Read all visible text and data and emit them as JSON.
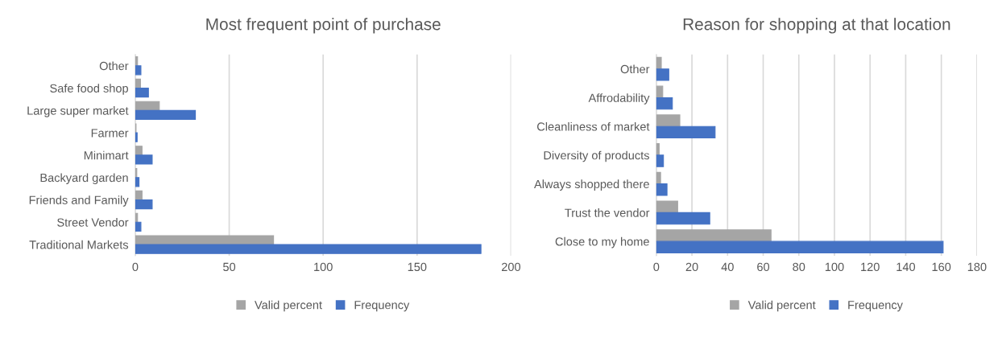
{
  "chart_data": [
    {
      "type": "bar",
      "orientation": "horizontal",
      "title": "Most frequent point of purchase",
      "categories": [
        "Other",
        "Safe food shop",
        "Large super market",
        "Farmer",
        "Minimart",
        "Backyard garden",
        "Friends and Family",
        "Street Vendor",
        "Traditional Markets"
      ],
      "series": [
        {
          "name": "Valid percent",
          "color": "#a5a5a5",
          "values": [
            1.2,
            2.8,
            12.8,
            0.4,
            3.6,
            0.8,
            3.6,
            1.2,
            73.6
          ]
        },
        {
          "name": "Frequency",
          "color": "#4472c4",
          "values": [
            3,
            7,
            32,
            1,
            9,
            2,
            9,
            3,
            184
          ]
        }
      ],
      "xlim": [
        0,
        200
      ],
      "xticks": [
        0,
        50,
        100,
        150,
        200
      ],
      "grid": "x",
      "legend": "bottom"
    },
    {
      "type": "bar",
      "orientation": "horizontal",
      "title": "Reason for shopping at that location",
      "categories": [
        "Other",
        "Affrodability",
        "Cleanliness of market",
        "Diversity of products",
        "Always shopped there",
        "Trust the vendor",
        "Close to my home"
      ],
      "series": [
        {
          "name": "Valid percent",
          "color": "#a5a5a5",
          "values": [
            2.8,
            3.6,
            13.2,
            1.6,
            2.4,
            12,
            64.4
          ]
        },
        {
          "name": "Frequency",
          "color": "#4472c4",
          "values": [
            7,
            9,
            33,
            4,
            6,
            30,
            161
          ]
        }
      ],
      "xlim": [
        0,
        180
      ],
      "xticks": [
        0,
        20,
        40,
        60,
        80,
        100,
        120,
        140,
        160,
        180
      ],
      "grid": "x",
      "legend": "bottom"
    }
  ]
}
